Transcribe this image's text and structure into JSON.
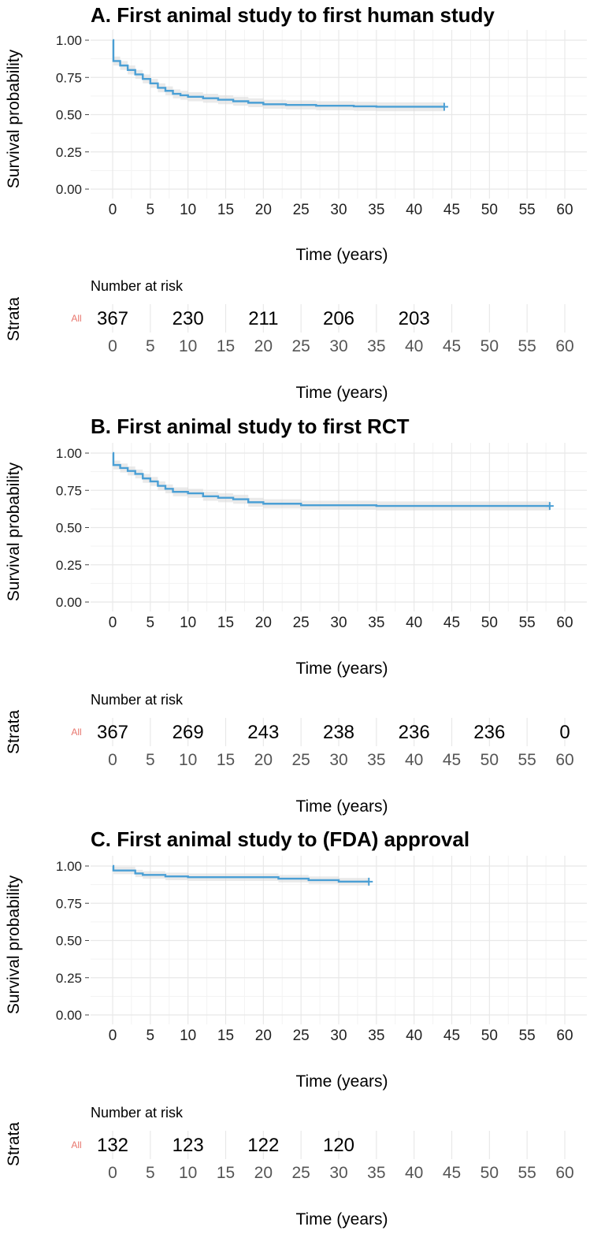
{
  "chart_data": [
    {
      "type": "line",
      "title": "A. First animal study to first human study",
      "ylabel": "Survival probability",
      "xlabel": "Time (years)",
      "ylim": [
        0,
        1
      ],
      "xlim": [
        0,
        60
      ],
      "y_ticks": [
        "0.00",
        "0.25",
        "0.50",
        "0.75",
        "1.00"
      ],
      "x_ticks": [
        "0",
        "5",
        "10",
        "15",
        "20",
        "25",
        "30",
        "35",
        "40",
        "45",
        "50",
        "55",
        "60"
      ],
      "series": [
        {
          "name": "All",
          "color": "#4a9fd5",
          "steps": [
            [
              0,
              1.0
            ],
            [
              0.1,
              0.86
            ],
            [
              1,
              0.83
            ],
            [
              2,
              0.8
            ],
            [
              3,
              0.77
            ],
            [
              4,
              0.74
            ],
            [
              5,
              0.71
            ],
            [
              6,
              0.68
            ],
            [
              7,
              0.66
            ],
            [
              8,
              0.64
            ],
            [
              9,
              0.63
            ],
            [
              10,
              0.62
            ],
            [
              12,
              0.61
            ],
            [
              14,
              0.6
            ],
            [
              16,
              0.59
            ],
            [
              18,
              0.58
            ],
            [
              20,
              0.57
            ],
            [
              23,
              0.565
            ],
            [
              27,
              0.56
            ],
            [
              32,
              0.556
            ],
            [
              35,
              0.553
            ],
            [
              44,
              0.553
            ]
          ],
          "ci_half_width": 0.03,
          "censor": [
            44,
            0.553
          ]
        }
      ],
      "risk_table": {
        "heading": "Number at risk",
        "strata_label": "Strata",
        "group_label": "All",
        "group_color": "#e8766d",
        "xlabel": "Time (years)",
        "points": [
          {
            "x": 0,
            "label": "367"
          },
          {
            "x": 10,
            "label": "230"
          },
          {
            "x": 20,
            "label": "211"
          },
          {
            "x": 30,
            "label": "206"
          },
          {
            "x": 40,
            "label": "203"
          }
        ]
      }
    },
    {
      "type": "line",
      "title": "B. First animal study to first RCT",
      "ylabel": "Survival probability",
      "xlabel": "Time (years)",
      "ylim": [
        0,
        1
      ],
      "xlim": [
        0,
        60
      ],
      "y_ticks": [
        "0.00",
        "0.25",
        "0.50",
        "0.75",
        "1.00"
      ],
      "x_ticks": [
        "0",
        "5",
        "10",
        "15",
        "20",
        "25",
        "30",
        "35",
        "40",
        "45",
        "50",
        "55",
        "60"
      ],
      "series": [
        {
          "name": "All",
          "color": "#4a9fd5",
          "steps": [
            [
              0,
              1.0
            ],
            [
              0.1,
              0.92
            ],
            [
              1,
              0.9
            ],
            [
              2,
              0.88
            ],
            [
              3,
              0.86
            ],
            [
              4,
              0.83
            ],
            [
              5,
              0.81
            ],
            [
              6,
              0.78
            ],
            [
              7,
              0.76
            ],
            [
              8,
              0.74
            ],
            [
              10,
              0.73
            ],
            [
              12,
              0.71
            ],
            [
              14,
              0.7
            ],
            [
              16,
              0.69
            ],
            [
              18,
              0.67
            ],
            [
              20,
              0.66
            ],
            [
              25,
              0.65
            ],
            [
              35,
              0.645
            ],
            [
              58,
              0.645
            ]
          ],
          "ci_half_width": 0.03,
          "censor": [
            58,
            0.645
          ]
        }
      ],
      "risk_table": {
        "heading": "Number at risk",
        "strata_label": "Strata",
        "group_label": "All",
        "group_color": "#e8766d",
        "xlabel": "Time (years)",
        "points": [
          {
            "x": 0,
            "label": "367"
          },
          {
            "x": 10,
            "label": "269"
          },
          {
            "x": 20,
            "label": "243"
          },
          {
            "x": 30,
            "label": "238"
          },
          {
            "x": 40,
            "label": "236"
          },
          {
            "x": 50,
            "label": "236"
          },
          {
            "x": 60,
            "label": "0"
          }
        ]
      }
    },
    {
      "type": "line",
      "title": "C. First animal study to (FDA) approval",
      "ylabel": "Survival probability",
      "xlabel": "Time (years)",
      "ylim": [
        0,
        1
      ],
      "xlim": [
        0,
        60
      ],
      "y_ticks": [
        "0.00",
        "0.25",
        "0.50",
        "0.75",
        "1.00"
      ],
      "x_ticks": [
        "0",
        "5",
        "10",
        "15",
        "20",
        "25",
        "30",
        "35",
        "40",
        "45",
        "50",
        "55",
        "60"
      ],
      "series": [
        {
          "name": "All",
          "color": "#4a9fd5",
          "steps": [
            [
              0,
              1.0
            ],
            [
              0.1,
              0.97
            ],
            [
              3,
              0.95
            ],
            [
              4,
              0.94
            ],
            [
              7,
              0.93
            ],
            [
              10,
              0.925
            ],
            [
              22,
              0.915
            ],
            [
              26,
              0.905
            ],
            [
              30,
              0.895
            ],
            [
              34,
              0.895
            ]
          ],
          "ci_half_width": 0.025,
          "censor": [
            34,
            0.895
          ]
        }
      ],
      "risk_table": {
        "heading": "Number at risk",
        "strata_label": "Strata",
        "group_label": "All",
        "group_color": "#e8766d",
        "xlabel": "Time (years)",
        "points": [
          {
            "x": 0,
            "label": "132"
          },
          {
            "x": 10,
            "label": "123"
          },
          {
            "x": 20,
            "label": "122"
          },
          {
            "x": 30,
            "label": "120"
          }
        ]
      }
    }
  ]
}
